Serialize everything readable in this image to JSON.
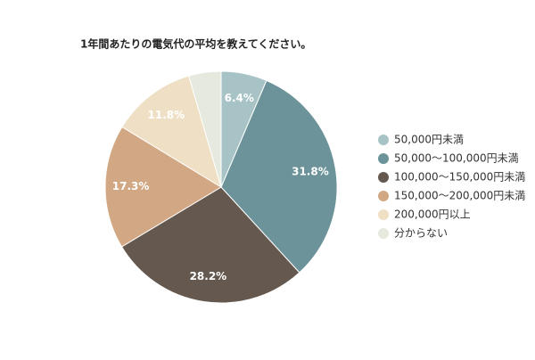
{
  "chart_data": {
    "type": "pie",
    "title": "1年間あたりの電気代の平均を教えてください。",
    "categories": [
      "50,000円未満",
      "50,000〜100,000円未満",
      "100,000〜150,000円未満",
      "150,000〜200,000円未満",
      "200,000円以上",
      "分からない"
    ],
    "values": [
      6.4,
      31.8,
      28.2,
      17.3,
      11.8,
      4.5
    ],
    "value_labels": [
      "6.4%",
      "31.8%",
      "28.2%",
      "17.3%",
      "11.8%",
      null
    ],
    "colors": [
      "#a8c3c5",
      "#6b9399",
      "#65594f",
      "#d1a883",
      "#efe0c5",
      "#e6e9dd"
    ],
    "legend": "right"
  }
}
